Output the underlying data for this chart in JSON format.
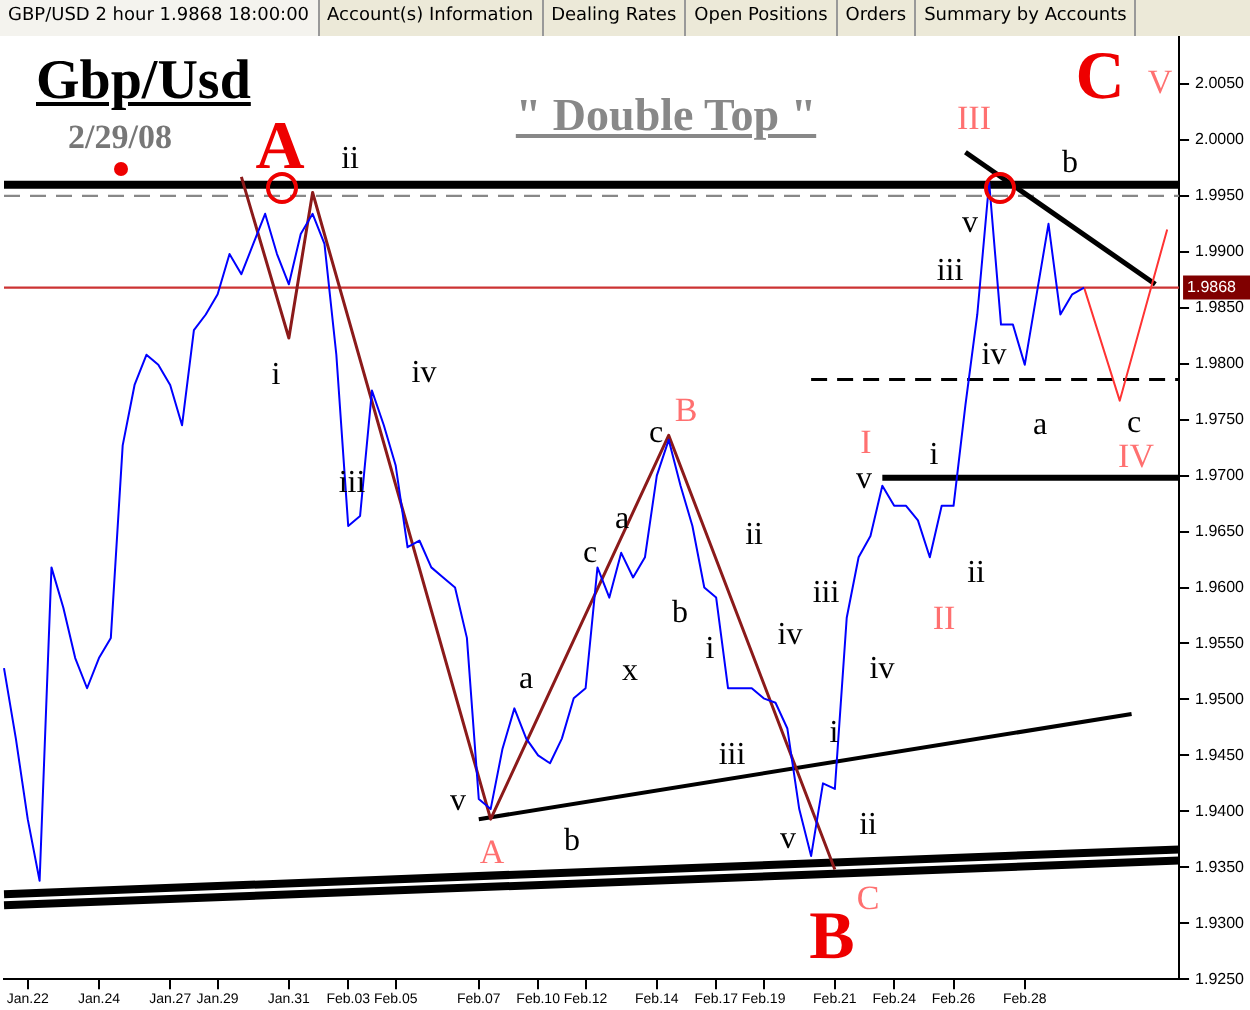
{
  "chart_data": {
    "type": "line",
    "title": "Gbp/Usd",
    "subtitle": "2/29/08",
    "categories": [
      null,
      null,
      "Jan.22",
      null,
      null,
      null,
      null,
      null,
      "Jan.24",
      null,
      null,
      null,
      null,
      null,
      "Jan.27",
      null,
      null,
      null,
      "Jan.29",
      null,
      null,
      null,
      null,
      null,
      "Jan.31",
      null,
      null,
      null,
      null,
      "Feb.03",
      null,
      null,
      null,
      "Feb.05",
      null,
      null,
      null,
      null,
      null,
      null,
      "Feb.07",
      null,
      null,
      null,
      null,
      "Feb.10",
      null,
      null,
      null,
      "Feb.12",
      null,
      null,
      null,
      null,
      null,
      "Feb.14",
      null,
      null,
      null,
      null,
      "Feb.17",
      null,
      null,
      null,
      "Feb.19",
      null,
      null,
      null,
      null,
      null,
      "Feb.21",
      null,
      null,
      null,
      null,
      "Feb.24",
      null,
      null,
      null,
      null,
      "Feb.26",
      null,
      null,
      null,
      null,
      null,
      "Feb.28",
      null,
      null,
      null,
      null,
      null,
      null,
      null,
      null,
      null,
      null,
      null,
      null,
      null
    ],
    "ylim": [
      1.925,
      2.01
    ],
    "yticks": [
      {
        "value": 1.925,
        "label": "1.9250"
      },
      {
        "value": 1.93,
        "label": "1.9300"
      },
      {
        "value": 1.935,
        "label": "1.9350"
      },
      {
        "value": 1.94,
        "label": "1.9400"
      },
      {
        "value": 1.945,
        "label": "1.9450"
      },
      {
        "value": 1.95,
        "label": "1.9500"
      },
      {
        "value": 1.955,
        "label": "1.9550"
      },
      {
        "value": 1.96,
        "label": "1.9600"
      },
      {
        "value": 1.965,
        "label": "1.9650"
      },
      {
        "value": 1.97,
        "label": "1.9700"
      },
      {
        "value": 1.975,
        "label": "1.9750"
      },
      {
        "value": 1.98,
        "label": "1.9800"
      },
      {
        "value": 1.985,
        "label": "1.9850"
      },
      {
        "value": 1.99,
        "label": "1.9900"
      },
      {
        "value": 1.995,
        "label": "1.9950"
      },
      {
        "value": 2.0,
        "label": "2.0000"
      },
      {
        "value": 2.005,
        "label": "2.0050"
      }
    ],
    "grid": false,
    "legend": false,
    "marker": "none",
    "line_style": "solid",
    "series": [
      {
        "color": "#0000ff",
        "values": [
          1.9528,
          1.9465,
          1.9393,
          1.9338,
          1.9618,
          1.9582,
          1.9537,
          1.951,
          1.9537,
          1.9555,
          1.9727,
          1.9781,
          1.9808,
          1.9799,
          1.9781,
          1.9745,
          1.983,
          1.9844,
          1.9862,
          1.9898,
          1.988,
          1.9907,
          1.9934,
          1.9898,
          1.9871,
          1.9916,
          1.9934,
          1.9907,
          1.9808,
          1.9655,
          1.9664,
          1.9776,
          1.9745,
          1.9709,
          1.9636,
          1.9642,
          1.9618,
          1.9609,
          1.96,
          1.9555,
          1.9411,
          1.9402,
          1.9456,
          1.9492,
          1.9465,
          1.945,
          1.9443,
          1.9465,
          1.9501,
          1.951,
          1.9618,
          1.9591,
          1.9631,
          1.9609,
          1.9627,
          1.97,
          1.9732,
          1.9691,
          1.9655,
          1.96,
          1.9591,
          1.951,
          1.951,
          1.951,
          1.9501,
          1.9497,
          1.9474,
          1.9402,
          1.936,
          1.9425,
          1.942,
          1.9573,
          1.9627,
          1.9646,
          1.9691,
          1.9673,
          1.9673,
          1.966,
          1.9627,
          1.9673,
          1.9673,
          1.9763,
          1.9844,
          1.9962,
          1.9835,
          1.9835,
          1.9799,
          1.9862,
          1.9925,
          1.9844,
          1.9862,
          1.9868,
          null,
          null,
          null,
          null,
          null,
          null,
          null,
          null
        ]
      },
      {
        "color": "#ff3333",
        "values": [
          null,
          null,
          null,
          null,
          null,
          null,
          null,
          null,
          null,
          null,
          null,
          null,
          null,
          null,
          null,
          null,
          null,
          null,
          null,
          null,
          null,
          null,
          null,
          null,
          null,
          null,
          null,
          null,
          null,
          null,
          null,
          null,
          null,
          null,
          null,
          null,
          null,
          null,
          null,
          null,
          null,
          null,
          null,
          null,
          null,
          null,
          null,
          null,
          null,
          null,
          null,
          null,
          null,
          null,
          null,
          null,
          null,
          null,
          null,
          null,
          null,
          null,
          null,
          null,
          null,
          null,
          null,
          null,
          null,
          null,
          null,
          null,
          null,
          null,
          null,
          null,
          null,
          null,
          null,
          null,
          null,
          null,
          null,
          null,
          null,
          null,
          null,
          null,
          null,
          null,
          null,
          1.9868,
          null,
          null,
          1.9767,
          null,
          null,
          null,
          1.992,
          null
        ]
      },
      {
        "color": "#8b1a1a",
        "values": [
          null,
          null,
          null,
          null,
          null,
          null,
          null,
          null,
          null,
          null,
          null,
          null,
          null,
          null,
          null,
          null,
          null,
          null,
          null,
          null,
          1.9967,
          null,
          null,
          null,
          1.9823,
          null,
          1.9953,
          null,
          null,
          null,
          null,
          null,
          null,
          null,
          null,
          null,
          null,
          null,
          null,
          null,
          null,
          1.9393,
          null,
          null,
          null,
          null,
          null,
          null,
          null,
          null,
          null,
          null,
          null,
          null,
          null,
          null,
          1.9736,
          null,
          null,
          null,
          null,
          null,
          null,
          null,
          null,
          null,
          null,
          null,
          null,
          null,
          1.9348,
          null,
          null,
          null,
          null,
          null,
          null,
          null,
          null,
          null,
          null,
          null,
          null,
          null,
          null,
          null,
          null,
          null,
          null,
          null,
          null,
          null,
          null,
          null,
          null,
          null,
          null,
          null,
          null,
          null
        ]
      },
      {
        "color": "#000000",
        "values": [
          null,
          null,
          null,
          null,
          null,
          null,
          null,
          null,
          null,
          null,
          null,
          null,
          null,
          null,
          null,
          null,
          null,
          null,
          null,
          null,
          null,
          null,
          null,
          null,
          null,
          null,
          null,
          null,
          null,
          null,
          null,
          null,
          null,
          null,
          null,
          null,
          null,
          null,
          null,
          null,
          1.9393,
          null,
          null,
          null,
          null,
          null,
          null,
          null,
          null,
          null,
          null,
          null,
          null,
          null,
          null,
          null,
          null,
          null,
          null,
          null,
          null,
          null,
          null,
          null,
          null,
          null,
          null,
          null,
          null,
          null,
          null,
          null,
          null,
          null,
          null,
          null,
          null,
          null,
          null,
          null,
          null,
          null,
          null,
          null,
          null,
          null,
          null,
          null,
          null,
          null,
          null,
          null,
          null,
          null,
          null,
          1.9487,
          null,
          null,
          null,
          null
        ]
      },
      {
        "color": "#000000",
        "values": [
          1.9326,
          null,
          null,
          null,
          null,
          null,
          null,
          null,
          null,
          null,
          null,
          null,
          null,
          null,
          null,
          null,
          null,
          null,
          null,
          null,
          null,
          null,
          null,
          null,
          null,
          null,
          null,
          null,
          null,
          null,
          null,
          null,
          null,
          null,
          null,
          null,
          null,
          null,
          null,
          null,
          null,
          null,
          null,
          null,
          null,
          null,
          null,
          null,
          null,
          null,
          null,
          null,
          null,
          null,
          null,
          null,
          null,
          null,
          null,
          null,
          null,
          null,
          null,
          null,
          null,
          null,
          null,
          null,
          null,
          null,
          null,
          null,
          null,
          null,
          null,
          null,
          null,
          null,
          null,
          null,
          null,
          null,
          null,
          null,
          null,
          null,
          null,
          null,
          null,
          null,
          null,
          null,
          null,
          null,
          null,
          null,
          null,
          null,
          null,
          1.9366
        ]
      },
      {
        "color": "#000000",
        "values": [
          1.9316,
          null,
          null,
          null,
          null,
          null,
          null,
          null,
          null,
          null,
          null,
          null,
          null,
          null,
          null,
          null,
          null,
          null,
          null,
          null,
          null,
          null,
          null,
          null,
          null,
          null,
          null,
          null,
          null,
          null,
          null,
          null,
          null,
          null,
          null,
          null,
          null,
          null,
          null,
          null,
          null,
          null,
          null,
          null,
          null,
          null,
          null,
          null,
          null,
          null,
          null,
          null,
          null,
          null,
          null,
          null,
          null,
          null,
          null,
          null,
          null,
          null,
          null,
          null,
          null,
          null,
          null,
          null,
          null,
          null,
          null,
          null,
          null,
          null,
          null,
          null,
          null,
          null,
          null,
          null,
          null,
          null,
          null,
          null,
          null,
          null,
          null,
          null,
          null,
          null,
          null,
          null,
          null,
          null,
          null,
          null,
          null,
          null,
          null,
          1.9356
        ]
      },
      {
        "color": "#000000",
        "values": [
          null,
          null,
          null,
          null,
          null,
          null,
          null,
          null,
          null,
          null,
          null,
          null,
          null,
          null,
          null,
          null,
          null,
          null,
          null,
          null,
          null,
          null,
          null,
          null,
          null,
          null,
          null,
          null,
          null,
          null,
          null,
          null,
          null,
          null,
          null,
          null,
          null,
          null,
          null,
          null,
          null,
          null,
          null,
          null,
          null,
          null,
          null,
          null,
          null,
          null,
          null,
          null,
          null,
          null,
          null,
          null,
          null,
          null,
          null,
          null,
          null,
          null,
          null,
          null,
          null,
          null,
          null,
          null,
          null,
          null,
          null,
          null,
          null,
          null,
          1.9698,
          null,
          null,
          null,
          null,
          null,
          null,
          null,
          null,
          null,
          null,
          null,
          null,
          null,
          null,
          null,
          null,
          null,
          null,
          null,
          null,
          null,
          null,
          null,
          null,
          1.9698
        ]
      },
      {
        "color": "#000000",
        "line_style": "dashed",
        "values": [
          null,
          null,
          null,
          null,
          null,
          null,
          null,
          null,
          null,
          null,
          null,
          null,
          null,
          null,
          null,
          null,
          null,
          null,
          null,
          null,
          null,
          null,
          null,
          null,
          null,
          null,
          null,
          null,
          null,
          null,
          null,
          null,
          null,
          null,
          null,
          null,
          null,
          null,
          null,
          null,
          null,
          null,
          null,
          null,
          null,
          null,
          null,
          null,
          null,
          null,
          null,
          null,
          null,
          null,
          null,
          null,
          null,
          null,
          null,
          null,
          null,
          null,
          null,
          null,
          null,
          null,
          null,
          null,
          1.9786,
          null,
          null,
          null,
          null,
          null,
          null,
          null,
          null,
          null,
          null,
          null,
          null,
          null,
          null,
          null,
          null,
          null,
          null,
          null,
          null,
          null,
          null,
          null,
          null,
          null,
          null,
          null,
          null,
          null,
          null,
          1.9786
        ]
      },
      {
        "color": "#000000",
        "values": [
          null,
          null,
          null,
          null,
          null,
          null,
          null,
          null,
          null,
          null,
          null,
          null,
          null,
          null,
          null,
          null,
          null,
          null,
          null,
          null,
          null,
          null,
          null,
          null,
          null,
          null,
          null,
          null,
          null,
          null,
          null,
          null,
          null,
          null,
          null,
          null,
          null,
          null,
          null,
          null,
          null,
          null,
          null,
          null,
          null,
          null,
          null,
          null,
          null,
          null,
          null,
          null,
          null,
          null,
          null,
          null,
          null,
          null,
          null,
          null,
          null,
          null,
          null,
          null,
          null,
          null,
          null,
          null,
          null,
          null,
          null,
          null,
          null,
          null,
          null,
          null,
          null,
          null,
          null,
          null,
          null,
          1.9989,
          null,
          null,
          null,
          null,
          null,
          null,
          null,
          null,
          null,
          null,
          null,
          null,
          null,
          null,
          null,
          1.9871,
          null,
          null
        ]
      }
    ],
    "ref_lines": [
      {
        "axis": "y",
        "value": 1.996,
        "color": "#000000"
      },
      {
        "axis": "y",
        "value": 1.995,
        "color": "#888888",
        "line_style": "dashed"
      },
      {
        "axis": "y",
        "value": 1.9868,
        "color": "#cc3333",
        "label": "1.9868"
      }
    ],
    "annotations": [
      "GBP/USD 2 hour 1.9868 18:00:00",
      "Account(s) Information",
      "Dealing Rates",
      "Open Positions",
      "Orders",
      "Summary by Accounts",
      "A",
      "ii",
      "i",
      "iv",
      "iii",
      "v",
      "A",
      "a",
      "b",
      "c",
      "a",
      "x",
      "B",
      "c",
      "b",
      "ii",
      "i",
      "iv",
      "iii",
      "iii",
      "v",
      "i",
      "ii",
      "C",
      "B",
      "iv",
      "I",
      "v",
      "i",
      "ii",
      "II",
      "iii",
      "iv",
      "v",
      "III",
      "a",
      "b",
      "c",
      "IV",
      "C",
      "V",
      "\" Double Top \""
    ]
  }
}
